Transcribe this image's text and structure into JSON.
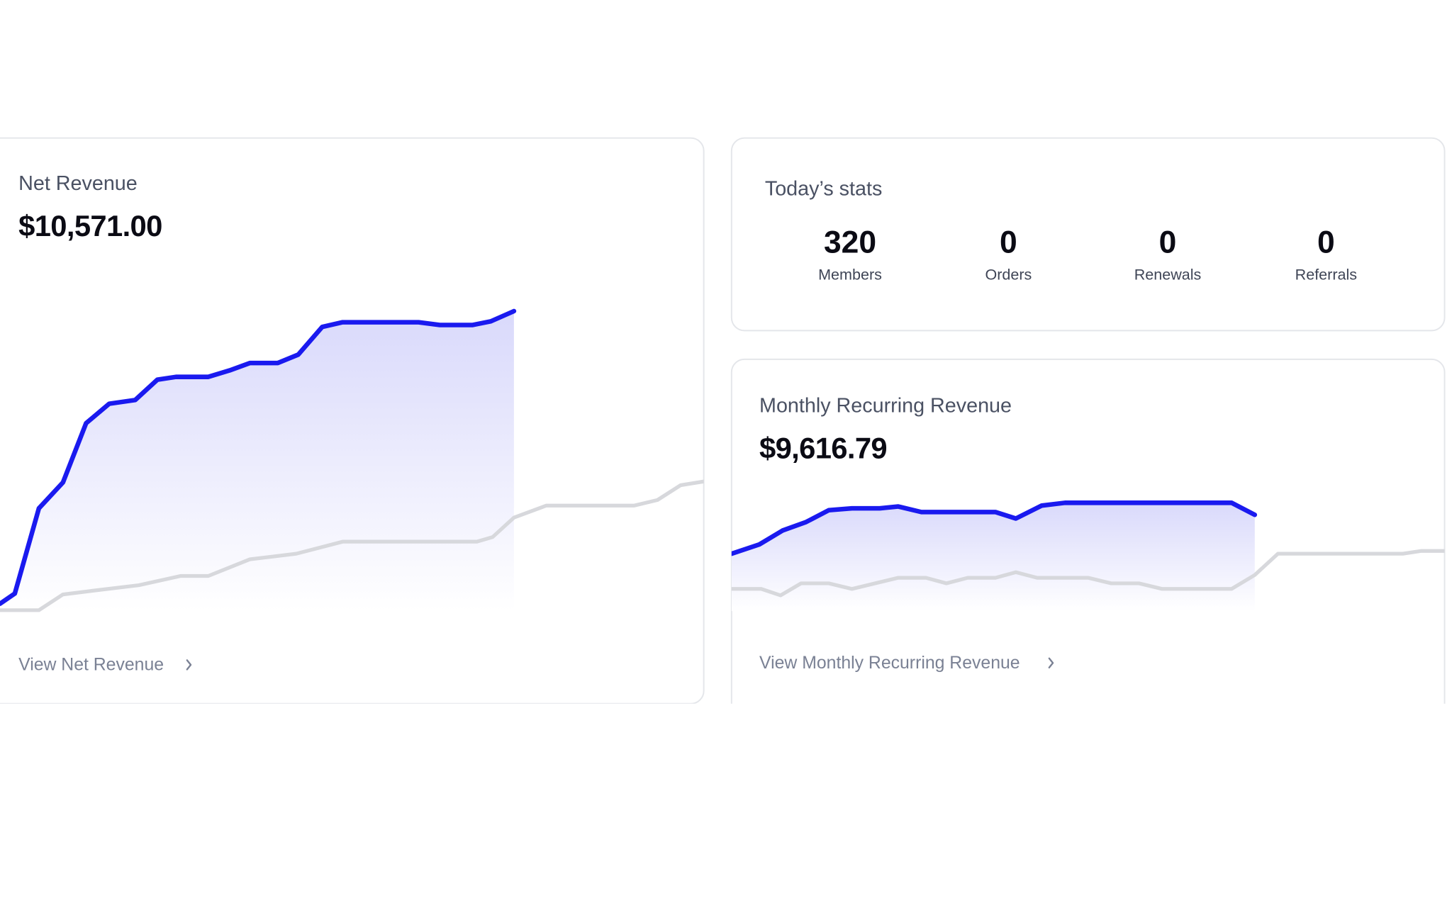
{
  "net_revenue": {
    "title": "Net Revenue",
    "amount": "$10,571.00",
    "link": "View Net Revenue"
  },
  "todays_stats": {
    "title": "Today’s stats",
    "stats": [
      {
        "value": 320,
        "label": "Members"
      },
      {
        "value": 0,
        "label": "Orders"
      },
      {
        "value": 0,
        "label": "Renewals"
      },
      {
        "value": 0,
        "label": "Referrals"
      }
    ]
  },
  "mrr": {
    "title": "Monthly Recurring Revenue",
    "amount": "$9,616.79",
    "link": "View Monthly Recurring Revenue"
  }
}
